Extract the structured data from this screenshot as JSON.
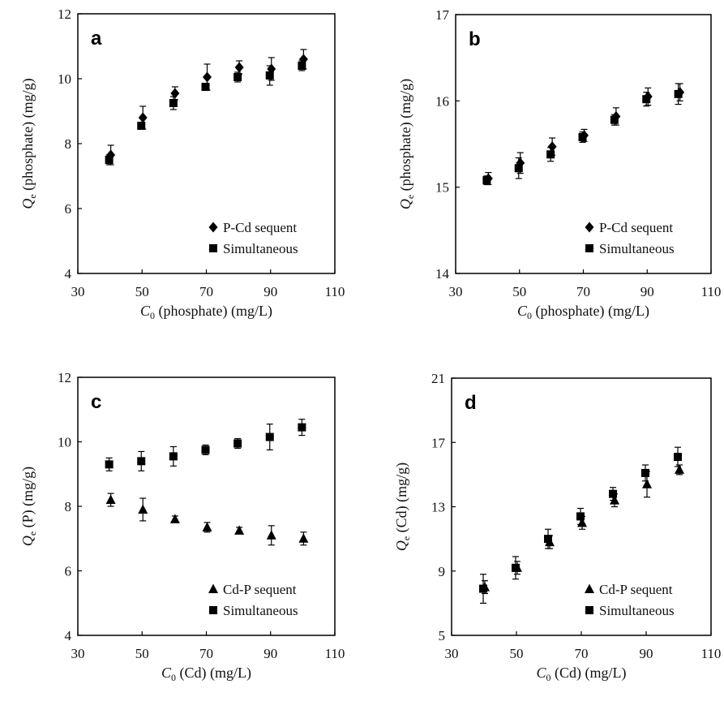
{
  "chart_data": [
    {
      "type": "scatter",
      "panel_label": "a",
      "xlabel": {
        "var": "C",
        "sub": "0",
        "rest": " (phosphate) (mg/L)"
      },
      "ylabel": {
        "var": "Q",
        "sub": "e",
        "rest": " (phosphate) (mg/g)"
      },
      "xlim": [
        30,
        110
      ],
      "ylim": [
        4,
        12
      ],
      "xticks": [
        30,
        50,
        70,
        90,
        110
      ],
      "yticks": [
        4,
        6,
        8,
        10,
        12
      ],
      "legend_position": "bottom-right",
      "x": [
        40,
        50,
        60,
        70,
        80,
        90,
        100
      ],
      "series": [
        {
          "name": "P-Cd sequent",
          "marker": "diamond",
          "values": [
            7.65,
            8.8,
            9.55,
            10.05,
            10.35,
            10.3,
            10.6
          ],
          "errors": [
            0.3,
            0.35,
            0.2,
            0.4,
            0.2,
            0.35,
            0.3
          ]
        },
        {
          "name": "Simultaneous",
          "marker": "square",
          "values": [
            7.5,
            8.55,
            9.25,
            9.75,
            10.05,
            10.1,
            10.4
          ],
          "errors": [
            0.15,
            0.1,
            0.2,
            0.1,
            0.15,
            0.3,
            0.15
          ]
        }
      ]
    },
    {
      "type": "scatter",
      "panel_label": "b",
      "xlabel": {
        "var": "C",
        "sub": "0",
        "rest": " (phosphate) (mg/L)"
      },
      "ylabel": {
        "var": "Q",
        "sub": "e",
        "rest": " (phosphate) (mg/g)"
      },
      "xlim": [
        30,
        110
      ],
      "ylim": [
        14,
        17
      ],
      "xticks": [
        30,
        50,
        70,
        90,
        110
      ],
      "yticks": [
        14,
        15,
        16,
        17
      ],
      "legend_position": "bottom-right",
      "x": [
        40,
        50,
        60,
        70,
        80,
        90,
        100
      ],
      "series": [
        {
          "name": "P-Cd sequent",
          "marker": "diamond",
          "values": [
            15.1,
            15.28,
            15.47,
            15.6,
            15.82,
            16.05,
            16.1
          ],
          "errors": [
            0.07,
            0.12,
            0.1,
            0.07,
            0.1,
            0.1,
            0.1
          ]
        },
        {
          "name": "Simultaneous",
          "marker": "square",
          "values": [
            15.08,
            15.22,
            15.38,
            15.58,
            15.78,
            16.02,
            16.08
          ],
          "errors": [
            0.05,
            0.12,
            0.08,
            0.06,
            0.06,
            0.08,
            0.12
          ]
        }
      ]
    },
    {
      "type": "scatter",
      "panel_label": "c",
      "xlabel": {
        "var": "C",
        "sub": "0",
        "rest": " (Cd) (mg/L)"
      },
      "ylabel": {
        "var": "Q",
        "sub": "e",
        "rest": " (P) (mg/g)"
      },
      "xlim": [
        30,
        110
      ],
      "ylim": [
        4,
        12
      ],
      "xticks": [
        30,
        50,
        70,
        90,
        110
      ],
      "yticks": [
        4,
        6,
        8,
        10,
        12
      ],
      "legend_position": "bottom-right",
      "x": [
        40,
        50,
        60,
        70,
        80,
        90,
        100
      ],
      "series": [
        {
          "name": "Cd-P sequent",
          "marker": "triangle",
          "values": [
            8.2,
            7.9,
            7.6,
            7.35,
            7.25,
            7.1,
            7.0
          ],
          "errors": [
            0.2,
            0.35,
            0.1,
            0.15,
            0.1,
            0.3,
            0.2
          ]
        },
        {
          "name": "Simultaneous",
          "marker": "square",
          "values": [
            9.3,
            9.4,
            9.55,
            9.75,
            9.95,
            10.15,
            10.45
          ],
          "errors": [
            0.2,
            0.3,
            0.3,
            0.15,
            0.15,
            0.4,
            0.25
          ]
        }
      ]
    },
    {
      "type": "scatter",
      "panel_label": "d",
      "xlabel": {
        "var": "C",
        "sub": "0",
        "rest": " (Cd) (mg/L)"
      },
      "ylabel": {
        "var": "Q",
        "sub": "e",
        "rest": " (Cd) (mg/g)"
      },
      "xlim": [
        30,
        110
      ],
      "ylim": [
        5,
        21
      ],
      "xticks": [
        30,
        50,
        70,
        90,
        110
      ],
      "yticks": [
        5,
        9,
        13,
        17,
        21
      ],
      "legend_position": "bottom-right",
      "x": [
        40,
        50,
        60,
        70,
        80,
        90,
        100
      ],
      "series": [
        {
          "name": "Cd-P sequent",
          "marker": "triangle",
          "values": [
            8.0,
            9.2,
            10.8,
            12.0,
            13.4,
            14.4,
            15.3
          ],
          "errors": [
            0.4,
            0.4,
            0.4,
            0.4,
            0.4,
            0.8,
            0.3
          ]
        },
        {
          "name": "Simultaneous",
          "marker": "square",
          "values": [
            7.9,
            9.2,
            11.0,
            12.4,
            13.8,
            15.1,
            16.1
          ],
          "errors": [
            0.9,
            0.7,
            0.6,
            0.5,
            0.4,
            0.5,
            0.6
          ]
        }
      ]
    }
  ]
}
